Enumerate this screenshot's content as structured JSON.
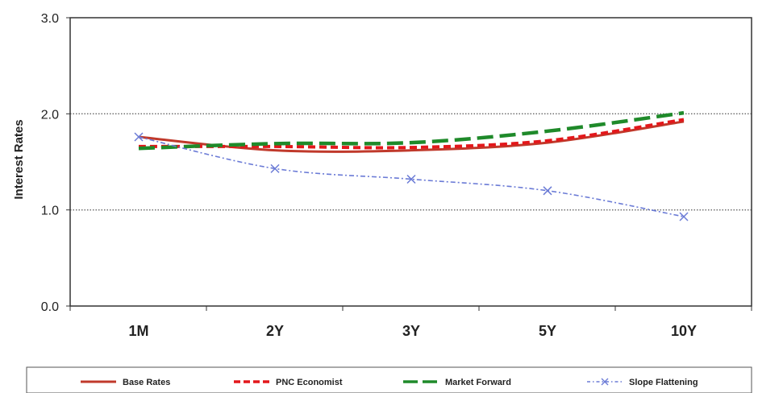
{
  "chart_data": {
    "type": "line",
    "ylabel": "Interest Rates",
    "xlabel": "",
    "categories": [
      "1M",
      "2Y",
      "3Y",
      "5Y",
      "10Y"
    ],
    "ylim": [
      0,
      3
    ],
    "yticks": [
      "0.0",
      "1.0",
      "2.0",
      "3.0"
    ],
    "grid": "horizontal dotted at 1.0 and 2.0",
    "legend_position": "bottom",
    "series": [
      {
        "name": "Base Rates",
        "values": [
          1.76,
          1.62,
          1.62,
          1.7,
          1.92
        ],
        "color": "#c0392b",
        "style": "solid"
      },
      {
        "name": "PNC Economist",
        "values": [
          1.66,
          1.66,
          1.65,
          1.72,
          1.94
        ],
        "color": "#e3171b",
        "style": "dashed"
      },
      {
        "name": "Market Forward",
        "values": [
          1.64,
          1.69,
          1.7,
          1.82,
          2.01
        ],
        "color": "#1f8a2a",
        "style": "longdash"
      },
      {
        "name": "Slope Flattening",
        "values": [
          1.76,
          1.43,
          1.32,
          1.2,
          0.93
        ],
        "color": "#6b7bd6",
        "style": "dashdot-x"
      }
    ]
  }
}
